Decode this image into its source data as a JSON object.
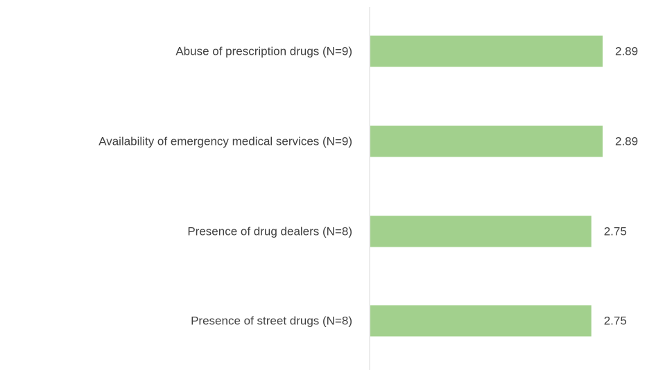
{
  "chart_data": {
    "type": "bar",
    "orientation": "horizontal",
    "categories": [
      "Abuse of prescription drugs (N=9)",
      "Availability of emergency medical services (N=9)",
      "Presence of drug dealers (N=8)",
      "Presence of street drugs (N=8)"
    ],
    "values": [
      2.89,
      2.89,
      2.75,
      2.75
    ],
    "value_labels": [
      "2.89",
      "2.89",
      "2.75",
      "2.75"
    ],
    "xlim": [
      0,
      2.89
    ],
    "bar_color": "#a2d08d",
    "axis_color": "#d9d9d9",
    "grid": false,
    "legend": "none"
  }
}
